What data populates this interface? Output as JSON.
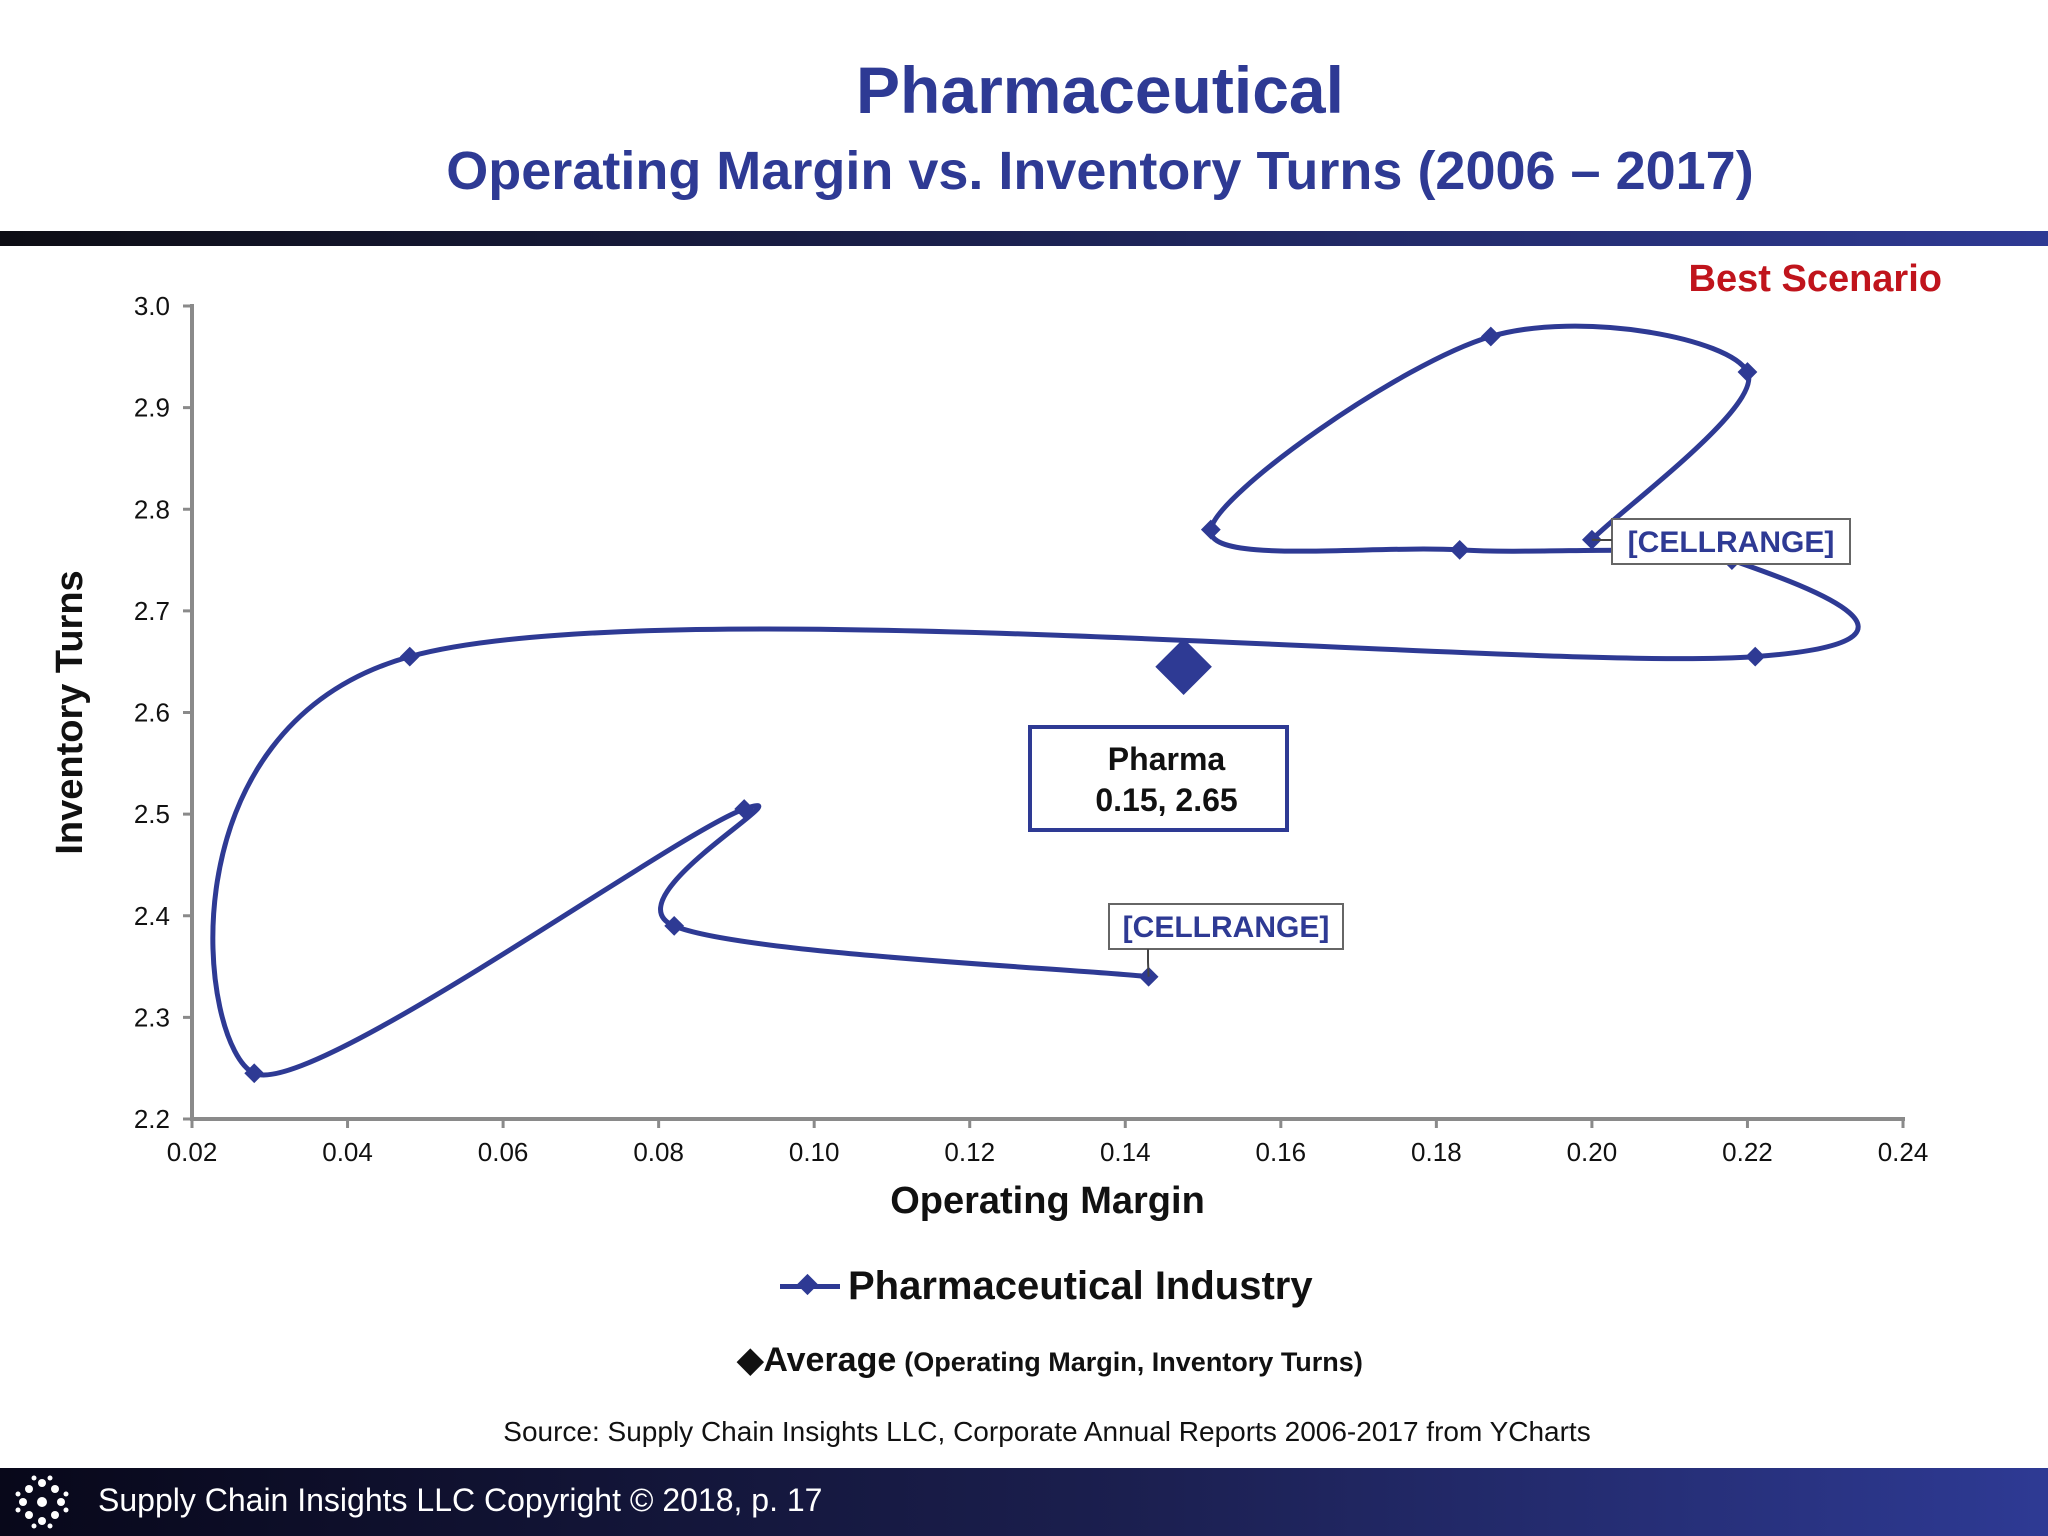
{
  "header": {
    "title": "Pharmaceutical",
    "subtitle": "Operating Margin vs. Inventory Turns (2006 – 2017)",
    "best_scenario": "Best Scenario"
  },
  "chart_data": {
    "type": "scatter",
    "xlabel": "Operating Margin",
    "ylabel": "Inventory Turns",
    "xlim": [
      0.02,
      0.24
    ],
    "ylim": [
      2.2,
      3.0
    ],
    "x_ticks": [
      "0.02",
      "0.04",
      "0.06",
      "0.08",
      "0.10",
      "0.12",
      "0.14",
      "0.16",
      "0.18",
      "0.20",
      "0.22",
      "0.24"
    ],
    "y_ticks": [
      "2.2",
      "2.3",
      "2.4",
      "2.5",
      "2.6",
      "2.7",
      "2.8",
      "2.9",
      "3.0"
    ],
    "series": [
      {
        "name": "Pharmaceutical Industry",
        "color": "#2e3a94",
        "x": [
          0.143,
          0.082,
          0.091,
          0.028,
          0.048,
          0.221,
          0.218,
          0.183,
          0.151,
          0.187,
          0.22,
          0.2
        ],
        "y": [
          2.34,
          2.39,
          2.505,
          2.245,
          2.655,
          2.655,
          2.75,
          2.76,
          2.78,
          2.97,
          2.935,
          2.77
        ]
      }
    ],
    "average": {
      "x": 0.1475,
      "y": 2.645,
      "color": "#2e3a94"
    },
    "annotations": [
      {
        "text": "[CELLRANGE]",
        "x": 0.143,
        "y": 2.34
      },
      {
        "text": "[CELLRANGE]",
        "x": 0.2,
        "y": 2.77
      }
    ],
    "callout": {
      "line1": "Pharma",
      "line2": "0.15, 2.65"
    }
  },
  "legend": {
    "series_label": "Pharmaceutical Industry",
    "average_glyph": "◆",
    "average_label": "Average",
    "average_sub": "(Operating Margin, Inventory Turns)"
  },
  "source": "Source:  Supply Chain Insights LLC, Corporate Annual Reports 2006-2017 from YCharts",
  "footer": {
    "text": "Supply Chain Insights LLC Copyright © 2018, p. 17"
  }
}
